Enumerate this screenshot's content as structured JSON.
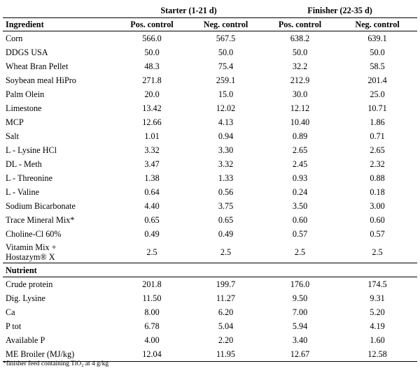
{
  "groups": [
    "Starter (1-21 d)",
    "Finisher (22-35 d)"
  ],
  "headers": [
    "Ingredient",
    "Pos. control",
    "Neg.  control",
    "Pos. control",
    "Neg.  control"
  ],
  "ingredients": [
    [
      "Corn",
      "566.0",
      "567.5",
      "638.2",
      "639.1"
    ],
    [
      "DDGS USA",
      "50.0",
      "50.0",
      "50.0",
      "50.0"
    ],
    [
      "Wheat Bran Pellet",
      "48.3",
      "75.4",
      "32.2",
      "58.5"
    ],
    [
      "Soybean meal HiPro",
      "271.8",
      "259.1",
      "212.9",
      "201.4"
    ],
    [
      "Palm Olein",
      "20.0",
      "15.0",
      "30.0",
      "25.0"
    ],
    [
      "Limestone",
      "13.42",
      "12.02",
      "12.12",
      "10.71"
    ],
    [
      "MCP",
      "12.66",
      "4.13",
      "10.40",
      "1.86"
    ],
    [
      "Salt",
      "1.01",
      "0.94",
      "0.89",
      "0.71"
    ],
    [
      "L - Lysine HCl",
      "3.32",
      "3.30",
      "2.65",
      "2.65"
    ],
    [
      "DL - Meth",
      "3.47",
      "3.32",
      "2.45",
      "2.32"
    ],
    [
      "L - Threonine",
      "1.38",
      "1.33",
      "0.93",
      "0.88"
    ],
    [
      "L - Valine",
      "0.64",
      "0.56",
      "0.24",
      "0.18"
    ],
    [
      "Sodium Bicarbonate",
      "4.40",
      "3.75",
      "3.50",
      "3.00"
    ],
    [
      "Trace Mineral Mix*",
      "0.65",
      "0.65",
      "0.60",
      "0.60"
    ],
    [
      "Choline-Cl 60%",
      "0.49",
      "0.49",
      "0.57",
      "0.57"
    ],
    [
      "Vitamin Mix +\nHostazym® X",
      "2.5",
      "2.5",
      "2.5",
      "2.5"
    ]
  ],
  "nutrient_heading": "Nutrient",
  "nutrients": [
    [
      "Crude protein",
      "201.8",
      "199.7",
      "176.0",
      "174.5"
    ],
    [
      "Dig. Lysine",
      "11.50",
      "11.27",
      "9.50",
      "9.31"
    ],
    [
      "Ca",
      "8.00",
      "6.20",
      "7.00",
      "5.20"
    ],
    [
      "P tot",
      "6.78",
      "5.04",
      "5.94",
      "4.19"
    ],
    [
      "Available P",
      "4.00",
      "2.20",
      "3.40",
      "1.60"
    ],
    [
      "ME Broiler (MJ/kg)",
      "12.04",
      "11.95",
      "12.67",
      "12.58"
    ]
  ],
  "footnote": "*finisher feed containing TiO₂ at  4 g/kg"
}
